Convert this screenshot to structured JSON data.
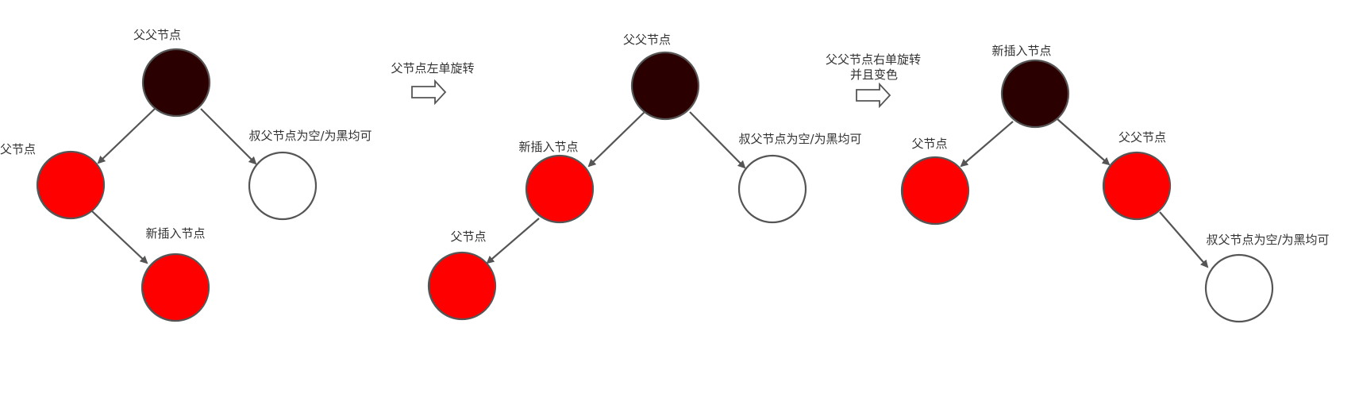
{
  "colors": {
    "black_node": "#2b0000",
    "red_node": "#ff0000",
    "empty_node": "#ffffff",
    "stroke": "#555555"
  },
  "panel1": {
    "grandparent_label": "父父节点",
    "parent_label": "父节点",
    "uncle_label": "叔父节点为空/为黑均可",
    "new_node_label": "新插入节点"
  },
  "step1": {
    "label": "父节点左单旋转"
  },
  "panel2": {
    "grandparent_label": "父父节点",
    "new_node_label": "新插入节点",
    "uncle_label": "叔父节点为空/为黑均可",
    "parent_label": "父节点"
  },
  "step2": {
    "label_line1": "父父节点右单旋转",
    "label_line2": "并且变色"
  },
  "panel3": {
    "root_label": "新插入节点",
    "parent_label": "父节点",
    "grandparent_label": "父父节点",
    "uncle_label": "叔父节点为空/为黑均可"
  }
}
